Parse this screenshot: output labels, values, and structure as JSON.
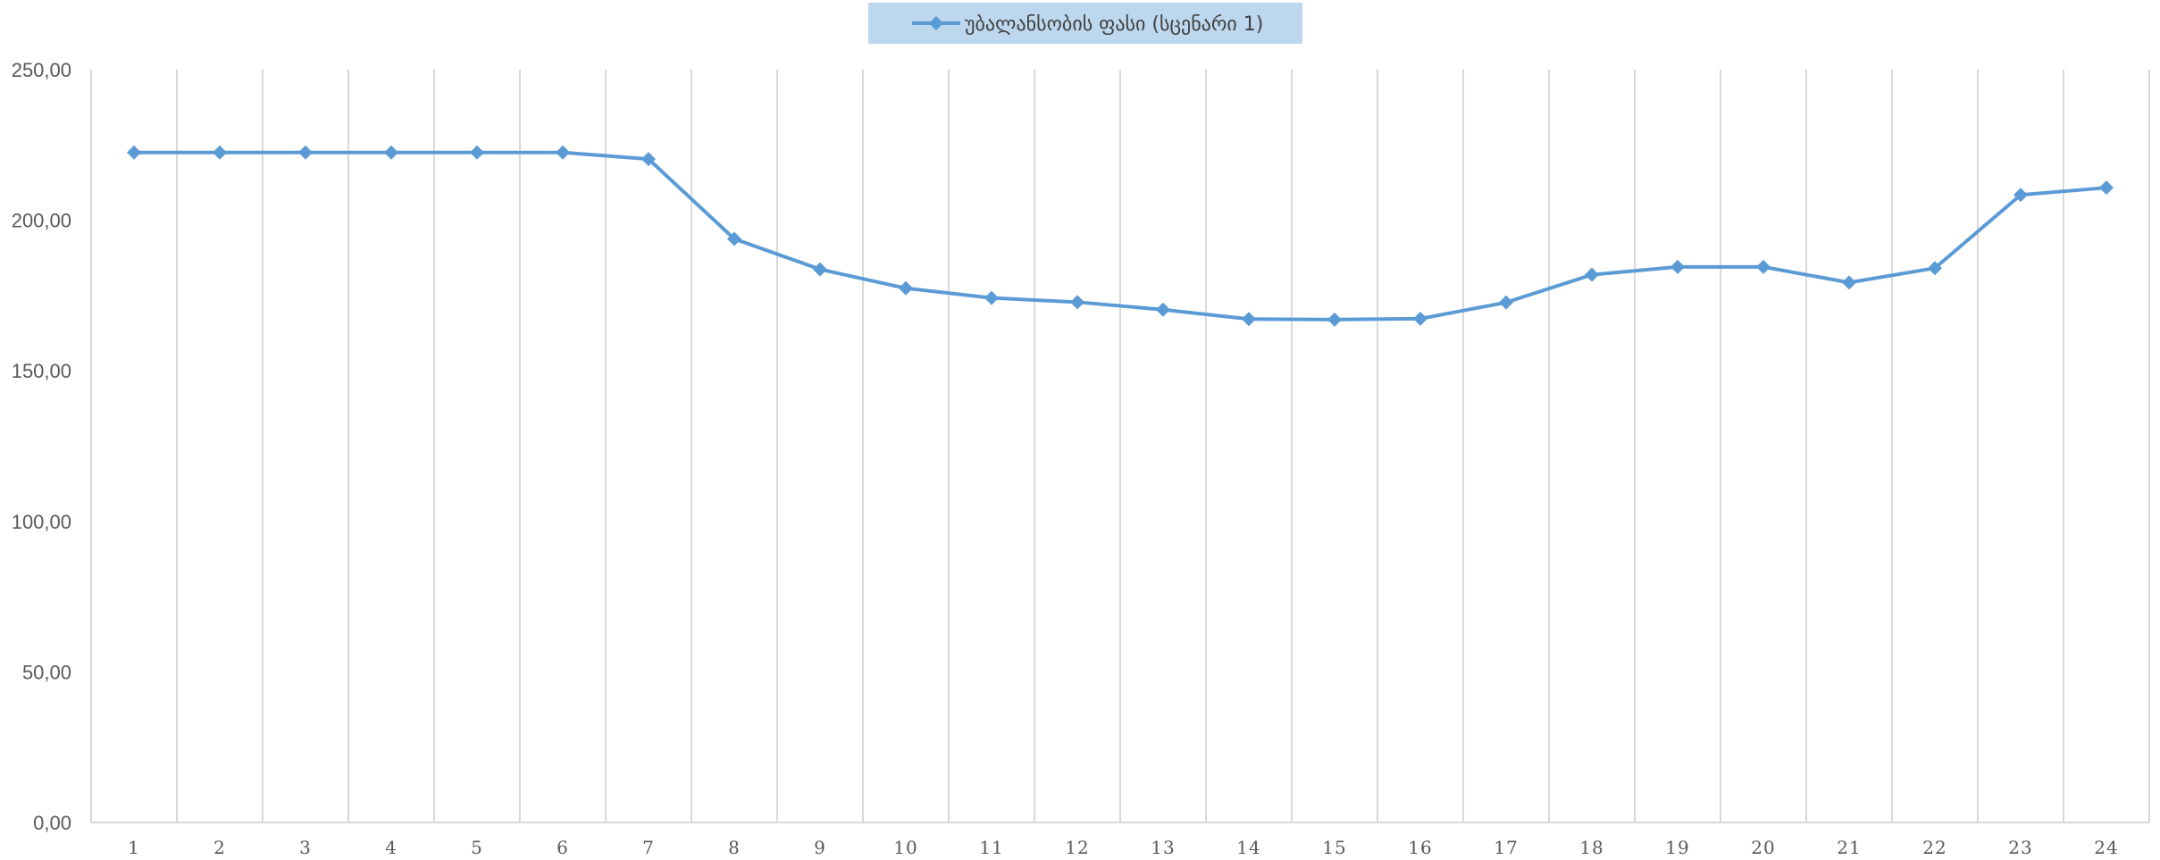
{
  "chart_data": {
    "type": "line",
    "title": "",
    "xlabel": "",
    "ylabel": "",
    "categories": [
      "1",
      "2",
      "3",
      "4",
      "5",
      "6",
      "7",
      "8",
      "9",
      "10",
      "11",
      "12",
      "13",
      "14",
      "15",
      "16",
      "17",
      "18",
      "19",
      "20",
      "21",
      "22",
      "23",
      "24"
    ],
    "series": [
      {
        "name": "უბალანსობის ფასი (სცენარი 1)",
        "values": [
          222.5,
          222.5,
          222.5,
          222.5,
          222.5,
          222.5,
          220.3,
          193.8,
          183.7,
          177.4,
          174.2,
          172.8,
          170.3,
          167.2,
          167.0,
          167.3,
          172.7,
          181.9,
          184.5,
          184.5,
          179.3,
          184.1,
          208.4,
          210.8
        ],
        "color": "#5B9BD5",
        "marker": "diamond"
      }
    ],
    "ylim": [
      0,
      250
    ],
    "y_ticks": [
      0,
      50,
      100,
      150,
      200,
      250
    ],
    "y_tick_labels": [
      "0,00",
      "50,00",
      "100,00",
      "150,00",
      "200,00",
      "250,00"
    ],
    "grid": {
      "vertical": true,
      "horizontal": false,
      "color": "#D9D9D9"
    },
    "legend_position": "top-center",
    "legend_background": "#BDD7EE"
  }
}
